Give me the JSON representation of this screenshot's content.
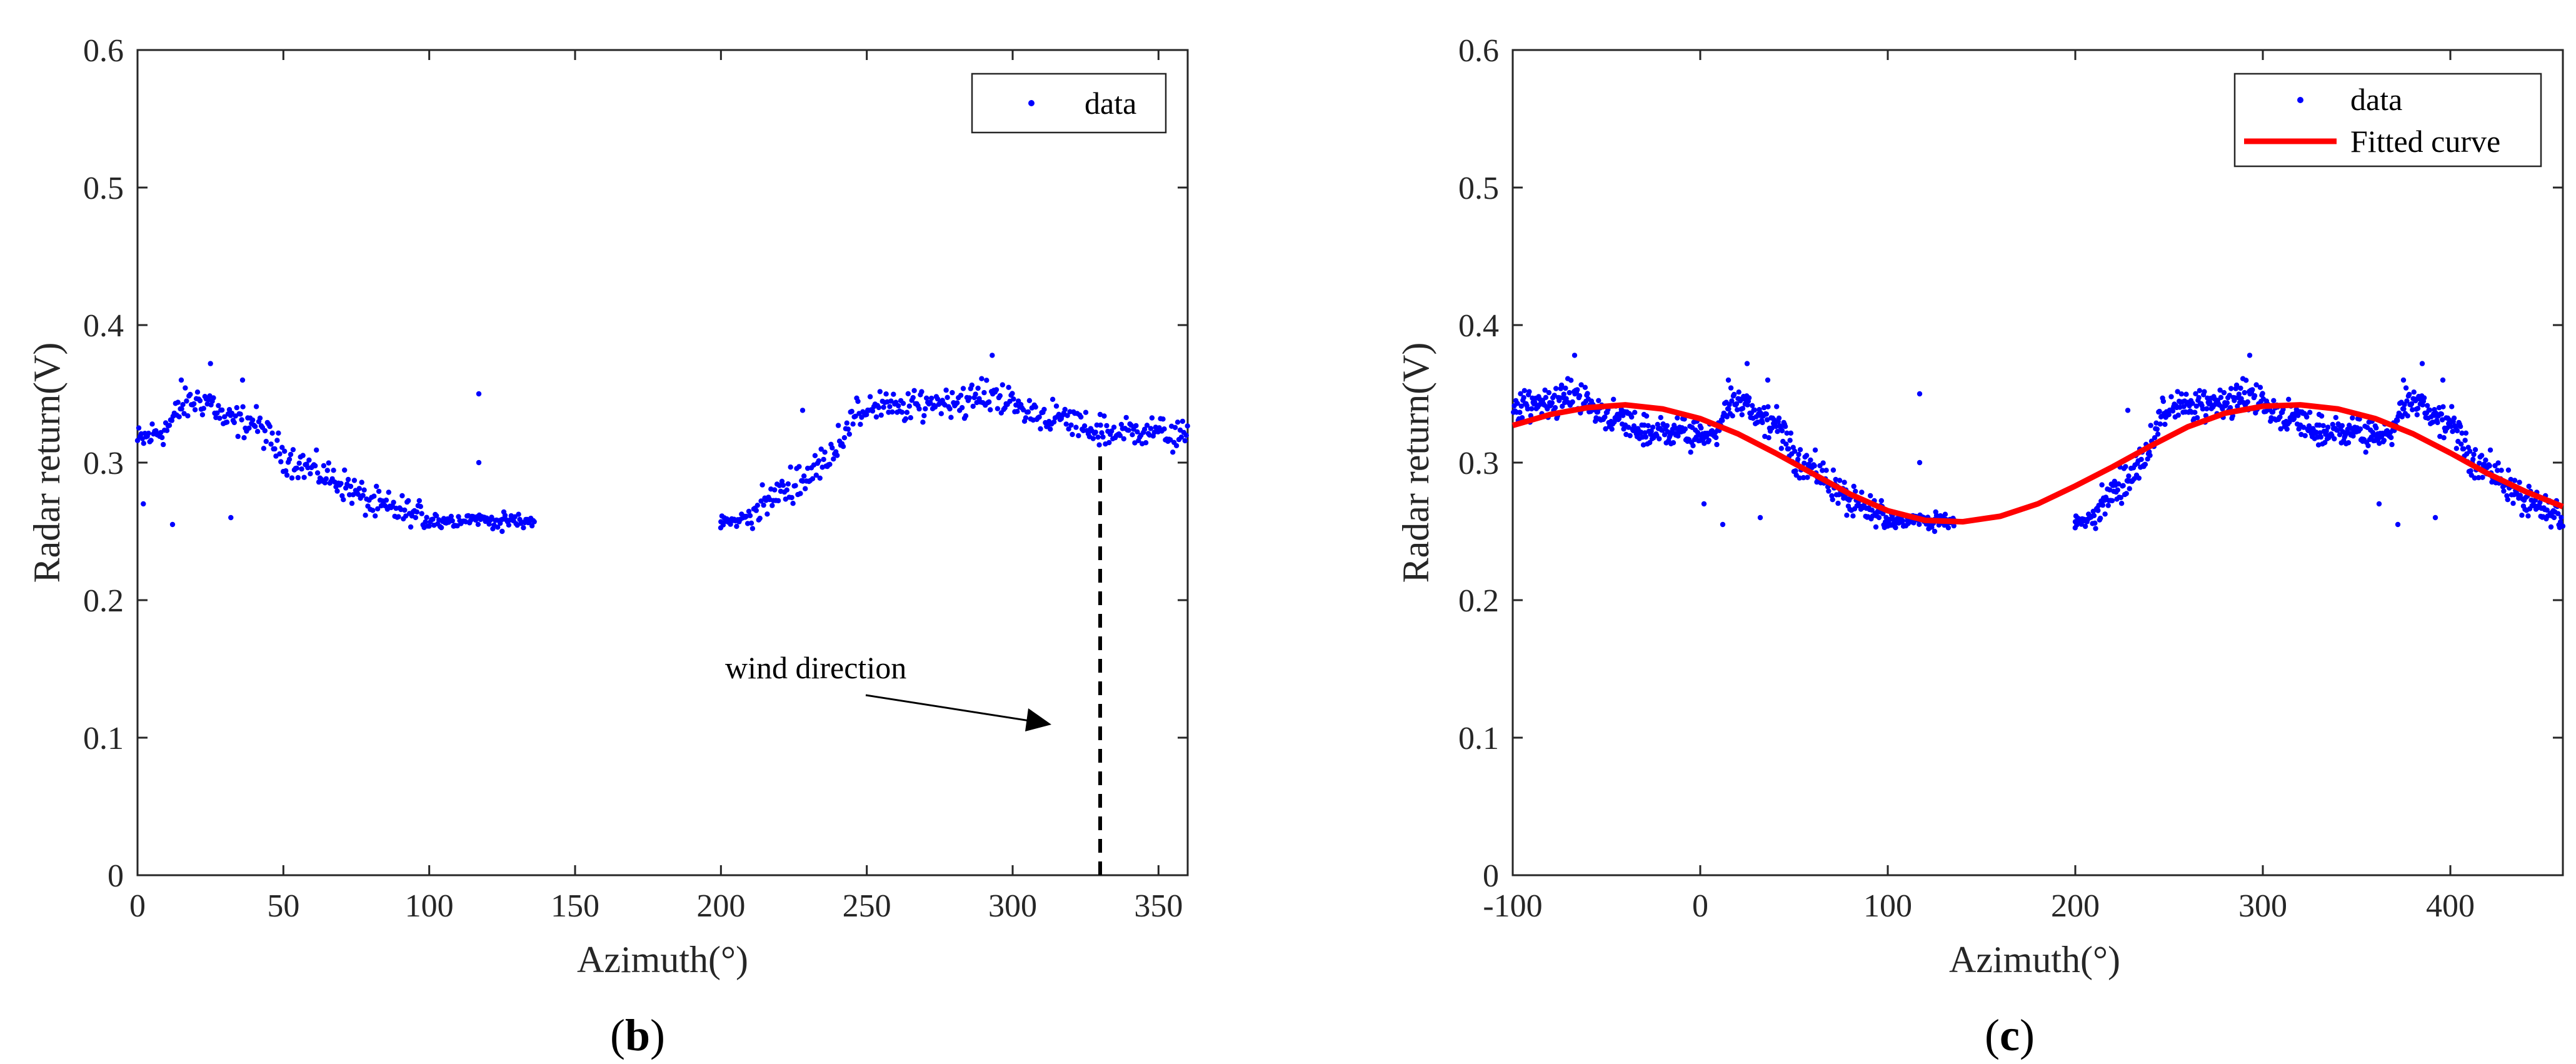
{
  "chart_data": [
    {
      "type": "scatter",
      "caption": "b",
      "xlabel": "Azimuth(°)",
      "ylabel": "Radar return(V)",
      "xlim": [
        0,
        360
      ],
      "ylim": [
        0,
        0.6
      ],
      "xticks": [
        0,
        50,
        100,
        150,
        200,
        250,
        300,
        350
      ],
      "yticks": [
        0,
        0.1,
        0.2,
        0.3,
        0.4,
        0.5,
        0.6
      ],
      "xtick_labels": [
        "0",
        "50",
        "100",
        "150",
        "200",
        "250",
        "300",
        "350"
      ],
      "ytick_labels": [
        "0",
        "0.1",
        "0.2",
        "0.3",
        "0.4",
        "0.5",
        "0.6"
      ],
      "legend": [
        {
          "label": "data",
          "style": "marker",
          "color": "#0000ff"
        }
      ],
      "legend_position": "top-right",
      "annotation": {
        "text": "wind direction",
        "x": 330,
        "y_range": [
          0,
          0.31
        ]
      },
      "series": [
        {
          "name": "data",
          "color": "#0000ff",
          "trend": [
            [
              0,
              0.315
            ],
            [
              5,
              0.32
            ],
            [
              10,
              0.325
            ],
            [
              15,
              0.34
            ],
            [
              20,
              0.345
            ],
            [
              25,
              0.345
            ],
            [
              30,
              0.33
            ],
            [
              35,
              0.33
            ],
            [
              40,
              0.33
            ],
            [
              45,
              0.318
            ],
            [
              50,
              0.305
            ],
            [
              55,
              0.3
            ],
            [
              60,
              0.295
            ],
            [
              65,
              0.29
            ],
            [
              70,
              0.285
            ],
            [
              75,
              0.278
            ],
            [
              80,
              0.27
            ],
            [
              85,
              0.267
            ],
            [
              90,
              0.265
            ],
            [
              95,
              0.262
            ],
            [
              100,
              0.26
            ],
            [
              105,
              0.258
            ],
            [
              110,
              0.258
            ],
            [
              115,
              0.26
            ],
            [
              120,
              0.258
            ],
            [
              125,
              0.258
            ],
            [
              130,
              0.257
            ],
            [
              135,
              0.257
            ],
            [
              200,
              0.257
            ],
            [
              205,
              0.257
            ],
            [
              210,
              0.262
            ],
            [
              215,
              0.27
            ],
            [
              220,
              0.278
            ],
            [
              225,
              0.285
            ],
            [
              230,
              0.29
            ],
            [
              235,
              0.3
            ],
            [
              240,
              0.315
            ],
            [
              245,
              0.33
            ],
            [
              250,
              0.34
            ],
            [
              255,
              0.342
            ],
            [
              260,
              0.338
            ],
            [
              265,
              0.34
            ],
            [
              270,
              0.343
            ],
            [
              275,
              0.345
            ],
            [
              280,
              0.345
            ],
            [
              285,
              0.345
            ],
            [
              290,
              0.348
            ],
            [
              295,
              0.35
            ],
            [
              300,
              0.342
            ],
            [
              305,
              0.337
            ],
            [
              310,
              0.335
            ],
            [
              315,
              0.332
            ],
            [
              320,
              0.33
            ],
            [
              325,
              0.325
            ],
            [
              330,
              0.322
            ],
            [
              335,
              0.322
            ],
            [
              340,
              0.322
            ],
            [
              345,
              0.325
            ],
            [
              350,
              0.322
            ],
            [
              355,
              0.32
            ],
            [
              360,
              0.318
            ]
          ],
          "outliers": [
            [
              2,
              0.27
            ],
            [
              12,
              0.255
            ],
            [
              15,
              0.36
            ],
            [
              25,
              0.372
            ],
            [
              32,
              0.26
            ],
            [
              36,
              0.36
            ],
            [
              117,
              0.35
            ],
            [
              117,
              0.3
            ],
            [
              125,
              0.25
            ],
            [
              136,
              0.257
            ],
            [
              200,
              0.257
            ],
            [
              228,
              0.338
            ],
            [
              293,
              0.378
            ],
            [
              330,
              0.335
            ]
          ]
        }
      ]
    },
    {
      "type": "scatter",
      "caption": "c",
      "xlabel": "Azimuth(°)",
      "ylabel": "Radar return(V)",
      "xlim": [
        -100,
        460
      ],
      "ylim": [
        0,
        0.6
      ],
      "xticks": [
        -100,
        0,
        100,
        200,
        300,
        400
      ],
      "yticks": [
        0,
        0.1,
        0.2,
        0.3,
        0.4,
        0.5,
        0.6
      ],
      "xtick_labels": [
        "-100",
        "0",
        "100",
        "200",
        "300",
        "400"
      ],
      "ytick_labels": [
        "0",
        "0.1",
        "0.2",
        "0.3",
        "0.4",
        "0.5",
        "0.6"
      ],
      "legend": [
        {
          "label": "data",
          "style": "marker",
          "color": "#0000ff"
        },
        {
          "label": "Fitted curve",
          "style": "line",
          "color": "#ff0000"
        }
      ],
      "legend_position": "top-right",
      "series": [
        {
          "name": "data",
          "color": "#0000ff",
          "source": "panel b data repeated with period 360",
          "xrange": [
            -100,
            460
          ]
        },
        {
          "name": "Fitted curve",
          "color": "#ff0000",
          "curve": [
            [
              -100,
              0.327
            ],
            [
              -80,
              0.335
            ],
            [
              -60,
              0.34
            ],
            [
              -40,
              0.342
            ],
            [
              -20,
              0.339
            ],
            [
              0,
              0.332
            ],
            [
              20,
              0.321
            ],
            [
              40,
              0.307
            ],
            [
              60,
              0.292
            ],
            [
              80,
              0.277
            ],
            [
              100,
              0.265
            ],
            [
              120,
              0.258
            ],
            [
              140,
              0.257
            ],
            [
              160,
              0.261
            ],
            [
              180,
              0.27
            ],
            [
              200,
              0.283
            ],
            [
              220,
              0.297
            ],
            [
              240,
              0.312
            ],
            [
              260,
              0.326
            ],
            [
              280,
              0.336
            ],
            [
              300,
              0.341
            ],
            [
              320,
              0.342
            ],
            [
              340,
              0.339
            ],
            [
              360,
              0.332
            ],
            [
              380,
              0.321
            ],
            [
              400,
              0.307
            ],
            [
              420,
              0.292
            ],
            [
              440,
              0.279
            ],
            [
              460,
              0.268
            ]
          ]
        }
      ]
    }
  ]
}
